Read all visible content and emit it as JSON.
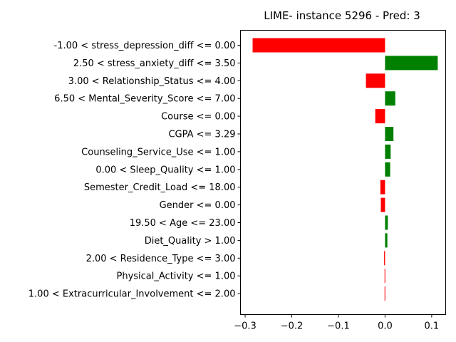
{
  "chart_data": {
    "type": "bar",
    "orientation": "horizontal",
    "title": "LIME- instance 5296 - Pred: 3",
    "xlabel": "",
    "ylabel": "",
    "xlim": [
      -0.31,
      0.13
    ],
    "xticks": [
      -0.3,
      -0.2,
      -0.1,
      0.0,
      0.1
    ],
    "xtick_labels": [
      "−0.3",
      "−0.2",
      "−0.1",
      "0.0",
      "0.1"
    ],
    "grid": false,
    "positive_color": "#008000",
    "negative_color": "#ff0000",
    "categories": [
      "-1.00 < stress_depression_diff <= 0.00",
      "2.50 < stress_anxiety_diff <= 3.50",
      "3.00 < Relationship_Status <= 4.00",
      "6.50 < Mental_Severity_Score <= 7.00",
      "Course <= 0.00",
      "CGPA <= 3.29",
      "Counseling_Service_Use <= 1.00",
      "0.00 < Sleep_Quality <= 1.00",
      "Semester_Credit_Load <= 18.00",
      "Gender <= 0.00",
      "19.50 < Age <= 23.00",
      "Diet_Quality > 1.00",
      "2.00 < Residence_Type <= 3.00",
      "Physical_Activity <= 1.00",
      "1.00 < Extracurricular_Involvement <= 2.00"
    ],
    "values": [
      -0.284,
      0.113,
      -0.041,
      0.022,
      -0.021,
      0.018,
      0.012,
      0.011,
      -0.01,
      -0.009,
      0.006,
      0.005,
      -0.002,
      -0.001,
      -0.001
    ]
  }
}
